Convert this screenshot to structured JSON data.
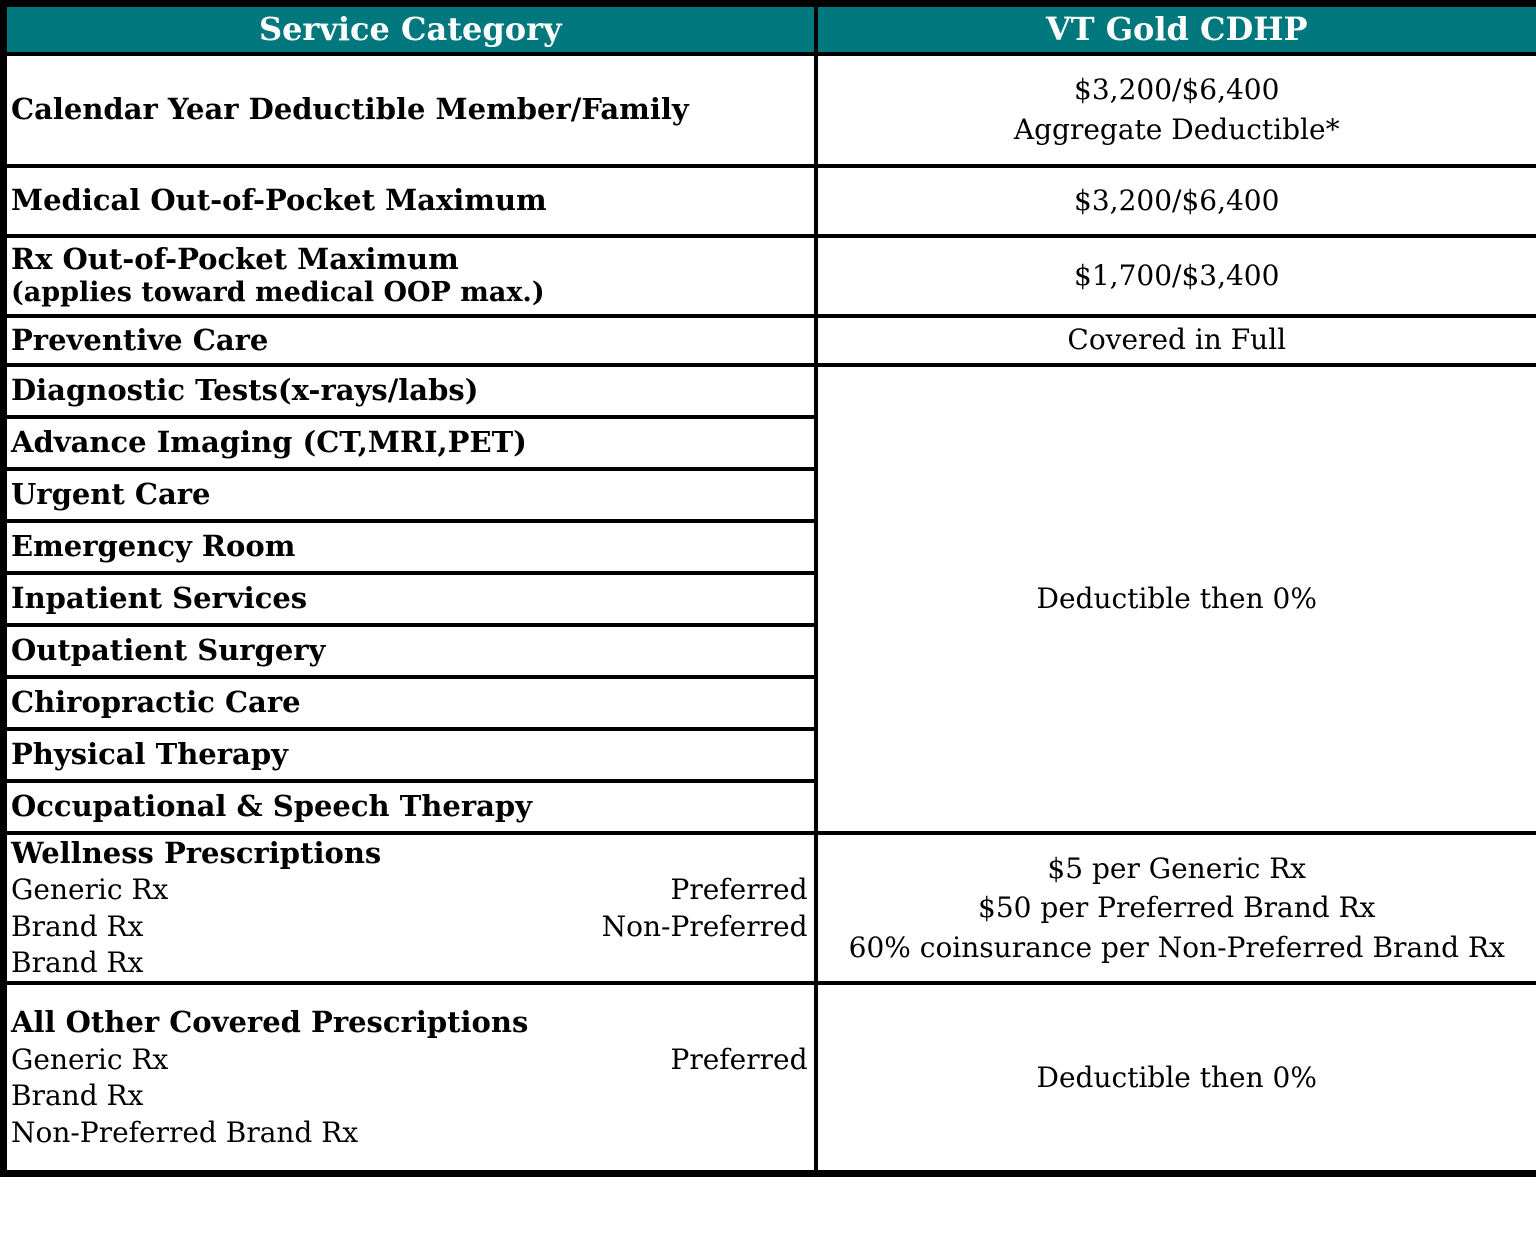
{
  "colors": {
    "header_bg": "#00787D",
    "header_text": "#FFFFFF",
    "border": "#000000",
    "body_text": "#000000"
  },
  "header": {
    "service_category": "Service Category",
    "plan_name": "VT Gold CDHP"
  },
  "rows": {
    "calendar_deductible": {
      "label": "Calendar Year Deductible Member/Family",
      "value_line1": "$3,200/$6,400",
      "value_line2": "Aggregate Deductible*"
    },
    "medical_oop": {
      "label": "Medical Out-of-Pocket Maximum",
      "value": "$3,200/$6,400"
    },
    "rx_oop": {
      "label_line1": "Rx Out-of-Pocket Maximum",
      "label_line2": "(applies toward medical OOP max.)",
      "value": "$1,700/$3,400"
    },
    "preventive": {
      "label": "Preventive Care",
      "value": "Covered in Full"
    },
    "services": [
      "Diagnostic Tests(x-rays/labs)",
      "Advance Imaging (CT,MRI,PET)",
      "Urgent Care",
      "Emergency Room",
      "Inpatient Services",
      "Outpatient Surgery",
      "Chiropractic Care",
      "Physical Therapy",
      "Occupational & Speech Therapy"
    ],
    "services_value": "Deductible then 0%",
    "wellness": {
      "title": "Wellness Prescriptions",
      "lines": [
        {
          "left": "Generic Rx",
          "right": "Preferred"
        },
        {
          "left": "Brand Rx",
          "right": "Non-Preferred"
        },
        {
          "left": "Brand Rx",
          "right": ""
        }
      ],
      "value_lines": [
        "$5 per Generic Rx",
        "$50 per Preferred Brand Rx",
        "60% coinsurance per Non-Preferred Brand Rx"
      ]
    },
    "all_other": {
      "title": "All Other Covered Prescriptions",
      "lines": [
        {
          "left": "Generic Rx",
          "right": "Preferred"
        },
        {
          "left": "Brand Rx",
          "right": ""
        },
        {
          "left": "Non-Preferred Brand Rx",
          "right": ""
        }
      ],
      "value": "Deductible then 0%"
    }
  }
}
